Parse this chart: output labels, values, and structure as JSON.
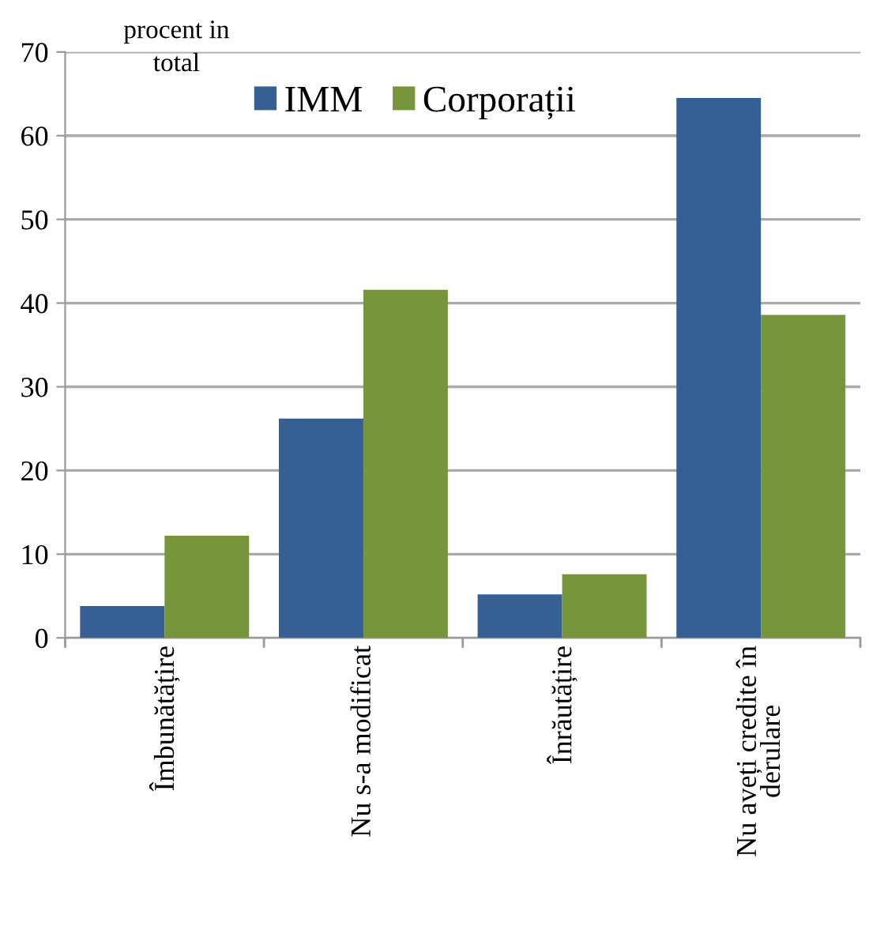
{
  "chart_data": {
    "type": "bar",
    "ylabel": "procent in total",
    "categories": [
      "Îmbunătățire",
      "Nu s-a modificat",
      "Înrăutățire",
      "Nu aveți credite în\nderulare"
    ],
    "series": [
      {
        "name": "IMM",
        "color": "#365f93",
        "values": [
          3.8,
          26.2,
          5.2,
          64.5
        ]
      },
      {
        "name": "Corporații",
        "color": "#77953a",
        "values": [
          12.2,
          41.6,
          7.6,
          38.6
        ]
      }
    ],
    "ylim": [
      0,
      70
    ],
    "yticks": [
      0,
      10,
      20,
      30,
      40,
      50,
      60,
      70
    ],
    "grid": "y",
    "legend": "top"
  }
}
